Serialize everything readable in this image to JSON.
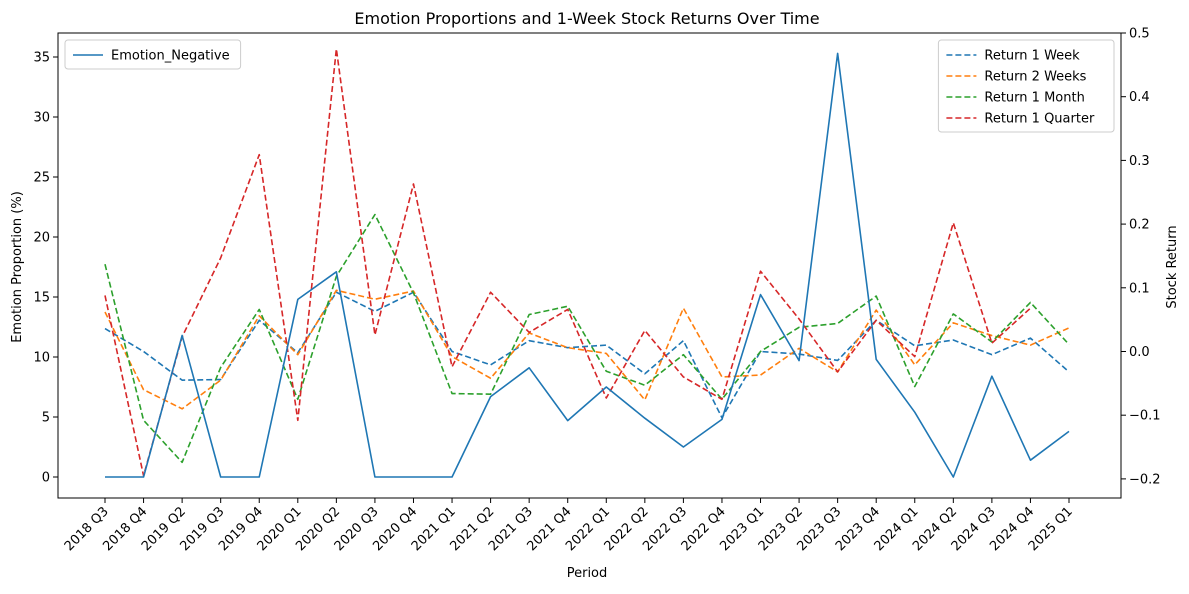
{
  "chart_data": {
    "type": "line",
    "title": "Emotion Proportions and 1-Week Stock Returns Over Time",
    "xlabel": "Period",
    "ylabel_left": "Emotion Proportion (%)",
    "ylabel_right": "Stock Return",
    "categories": [
      "2018 Q3",
      "2018 Q4",
      "2019 Q2",
      "2019 Q3",
      "2019 Q4",
      "2020 Q1",
      "2020 Q2",
      "2020 Q3",
      "2020 Q4",
      "2021 Q1",
      "2021 Q2",
      "2021 Q3",
      "2021 Q4",
      "2022 Q1",
      "2022 Q2",
      "2022 Q3",
      "2022 Q4",
      "2023 Q1",
      "2023 Q2",
      "2023 Q3",
      "2023 Q4",
      "2024 Q1",
      "2024 Q2",
      "2024 Q3",
      "2024 Q4",
      "2025 Q1"
    ],
    "ylim_left": [
      -1.75,
      37
    ],
    "ylim_right": [
      -0.23,
      0.5
    ],
    "yticks_left": [
      0,
      5,
      10,
      15,
      20,
      25,
      30,
      35
    ],
    "yticks_right": [
      -0.2,
      -0.1,
      0.0,
      0.1,
      0.2,
      0.3,
      0.4,
      0.5
    ],
    "yticks_right_labels": [
      "−0.2",
      "−0.1",
      "0.0",
      "0.1",
      "0.2",
      "0.3",
      "0.4",
      "0.5"
    ],
    "legend_left_position": "upper-left",
    "legend_right_position": "upper-right",
    "left_series": [
      {
        "name": "Emotion_Negative",
        "color": "#1f77b4",
        "style": "solid",
        "values": [
          0,
          0,
          11.8,
          0,
          0,
          14.8,
          17.1,
          0,
          0,
          0,
          6.7,
          9.1,
          4.7,
          7.5,
          4.9,
          2.5,
          4.8,
          15.2,
          9.7,
          35.3,
          9.8,
          5.4,
          0,
          8.4,
          1.4,
          3.8
        ]
      }
    ],
    "right_series": [
      {
        "name": "Return 1 Week",
        "color": "#1f77b4",
        "style": "dashed",
        "values": [
          0.036,
          0.0,
          -0.045,
          -0.044,
          0.049,
          -0.002,
          0.093,
          0.063,
          0.093,
          0.0,
          -0.021,
          0.017,
          0.006,
          0.01,
          -0.035,
          0.017,
          -0.104,
          0.0,
          -0.004,
          -0.014,
          0.049,
          0.009,
          0.018,
          -0.005,
          0.021,
          -0.032
        ]
      },
      {
        "name": "Return 2 Weeks",
        "color": "#ff7f0e",
        "style": "dashed",
        "values": [
          0.062,
          -0.06,
          -0.09,
          -0.045,
          0.056,
          -0.005,
          0.096,
          0.082,
          0.095,
          -0.008,
          -0.042,
          0.029,
          0.006,
          -0.003,
          -0.076,
          0.068,
          -0.04,
          -0.037,
          0.005,
          -0.032,
          0.065,
          -0.021,
          0.045,
          0.025,
          0.01,
          0.037
        ]
      },
      {
        "name": "Return 1 Month",
        "color": "#2ca02c",
        "style": "dashed",
        "values": [
          0.137,
          -0.108,
          -0.174,
          -0.025,
          0.066,
          -0.075,
          0.118,
          0.215,
          0.092,
          -0.066,
          -0.067,
          0.058,
          0.071,
          -0.031,
          -0.053,
          -0.005,
          -0.075,
          0.0,
          0.038,
          0.044,
          0.087,
          -0.055,
          0.059,
          0.015,
          0.077,
          0.011
        ]
      },
      {
        "name": "Return 1 Quarter",
        "color": "#d62728",
        "style": "dashed",
        "values": [
          0.088,
          -0.195,
          0.023,
          0.147,
          0.309,
          -0.108,
          0.475,
          0.026,
          0.263,
          -0.024,
          0.093,
          0.03,
          0.066,
          -0.073,
          0.033,
          -0.04,
          -0.075,
          0.126,
          0.051,
          -0.032,
          0.049,
          -0.008,
          0.202,
          0.013,
          0.068,
          null
        ]
      }
    ]
  }
}
